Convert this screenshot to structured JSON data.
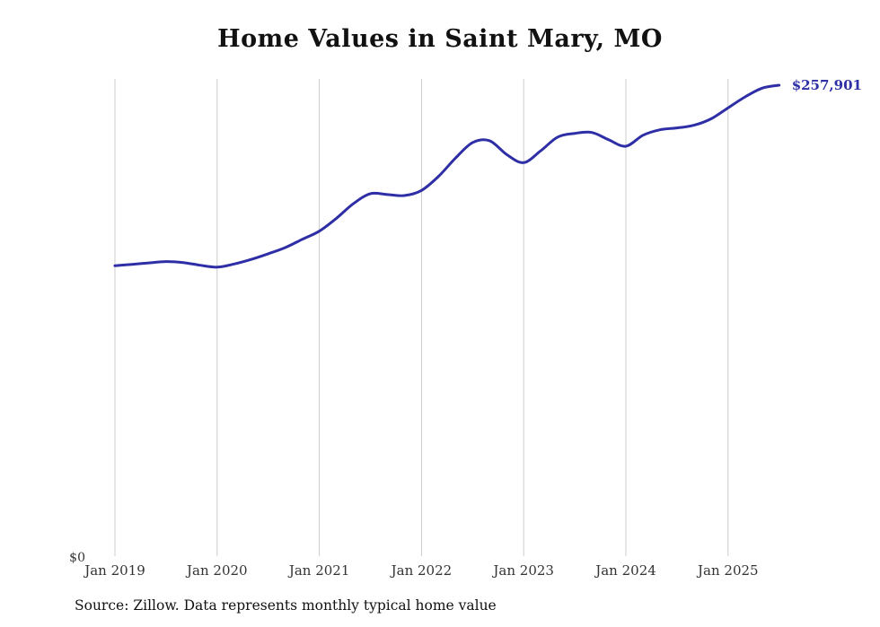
{
  "page": {
    "title": "Home Values in Saint Mary, MO",
    "source": "Source: Zillow. Data represents monthly typical home value"
  },
  "chart_data": {
    "type": "line",
    "title": "Home Values in Saint Mary, MO",
    "ylabel": "",
    "xlabel": "",
    "ylim": [
      0,
      270000
    ],
    "grid": "vertical-only",
    "legend": "none",
    "line_color": "#2e2ea6",
    "grid_color": "#cccccc",
    "y_zero_label": "$0",
    "end_label": "$257,901",
    "x_tick_labels": [
      "Jan 2019",
      "Jan 2020",
      "Jan 2021",
      "Jan 2022",
      "Jan 2023",
      "Jan 2024",
      "Jan 2025"
    ],
    "x": [
      "2019-01",
      "2019-03",
      "2019-05",
      "2019-07",
      "2019-09",
      "2019-11",
      "2020-01",
      "2020-03",
      "2020-05",
      "2020-07",
      "2020-09",
      "2020-11",
      "2021-01",
      "2021-03",
      "2021-05",
      "2021-07",
      "2021-09",
      "2021-11",
      "2022-01",
      "2022-03",
      "2022-05",
      "2022-07",
      "2022-09",
      "2022-11",
      "2023-01",
      "2023-03",
      "2023-05",
      "2023-07",
      "2023-09",
      "2023-11",
      "2024-01",
      "2024-03",
      "2024-05",
      "2024-07",
      "2024-09",
      "2024-11",
      "2025-01",
      "2025-03",
      "2025-05",
      "2025-07"
    ],
    "values": [
      159000,
      159800,
      160600,
      161300,
      160800,
      159300,
      158300,
      160000,
      162500,
      165600,
      169000,
      173500,
      178000,
      185000,
      193000,
      198500,
      198000,
      197500,
      200300,
      208000,
      218000,
      226500,
      227500,
      220000,
      215500,
      222000,
      229500,
      231500,
      232000,
      228000,
      224500,
      230500,
      233500,
      234500,
      236000,
      239500,
      245500,
      251500,
      256300,
      257901
    ]
  }
}
